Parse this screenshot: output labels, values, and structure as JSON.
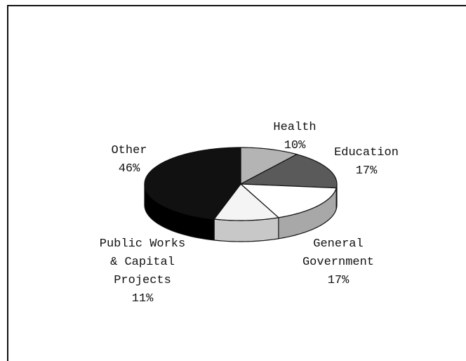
{
  "chart_data": {
    "type": "pie",
    "categories": [
      "Health",
      "Education",
      "General Government",
      "Public Works & Capital Projects",
      "Other"
    ],
    "values": [
      10,
      17,
      17,
      11,
      46
    ],
    "value_labels": [
      "10%",
      "17%",
      "17%",
      "11%",
      "46%"
    ],
    "colors": [
      "#b4b4b4",
      "#5a5a5a",
      "#ffffff",
      "#f4f4f4",
      "#111111"
    ],
    "side_colors": [
      "#8a8a8a",
      "#3a3a3a",
      "#a8a8a8",
      "#c8c8c8",
      "#000000"
    ]
  }
}
